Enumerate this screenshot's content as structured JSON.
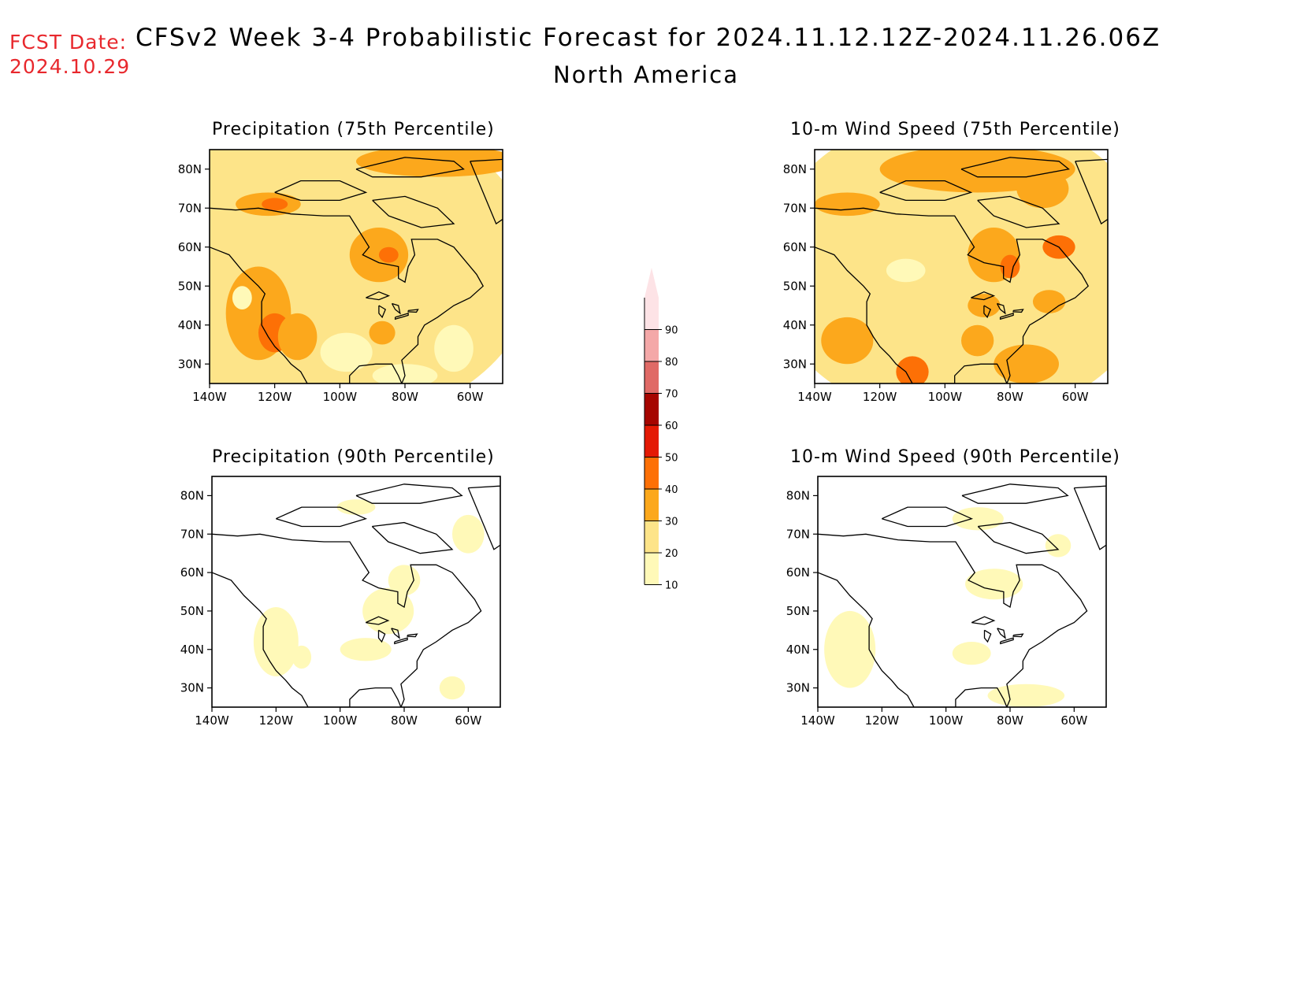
{
  "header": {
    "fcst_label": "FCST Date:",
    "fcst_date": "2024.10.29",
    "title": "CFSv2 Week 3-4 Probabilistic Forecast for 2024.11.12.12Z-2024.11.26.06Z",
    "subtitle": "North America"
  },
  "axes": {
    "lat_labels": [
      "80N",
      "70N",
      "60N",
      "50N",
      "40N",
      "30N"
    ],
    "lat_values": [
      80,
      70,
      60,
      50,
      40,
      30
    ],
    "lon_labels": [
      "140W",
      "120W",
      "100W",
      "80W",
      "60W"
    ],
    "lon_values": [
      -140,
      -120,
      -100,
      -80,
      -60
    ],
    "lon_range": [
      -140,
      -50
    ],
    "lat_range": [
      25,
      85
    ]
  },
  "panels": [
    {
      "id": "precip-75",
      "title": "Precipitation (75th Percentile)",
      "level": "high"
    },
    {
      "id": "wind-75",
      "title": "10-m Wind Speed (75th Percentile)",
      "level": "high"
    },
    {
      "id": "precip-90",
      "title": "Precipitation (90th Percentile)",
      "level": "low"
    },
    {
      "id": "wind-90",
      "title": "10-m Wind Speed (90th Percentile)",
      "level": "low"
    }
  ],
  "colorbar": {
    "levels": [
      "10",
      "20",
      "30",
      "40",
      "50",
      "60",
      "70",
      "80",
      "90"
    ],
    "colors": [
      "#fff9b8",
      "#fde489",
      "#fca81c",
      "#fd7006",
      "#e41a04",
      "#a60500",
      "#e06a66",
      "#f4a8a8",
      "#fde3e6"
    ]
  }
}
